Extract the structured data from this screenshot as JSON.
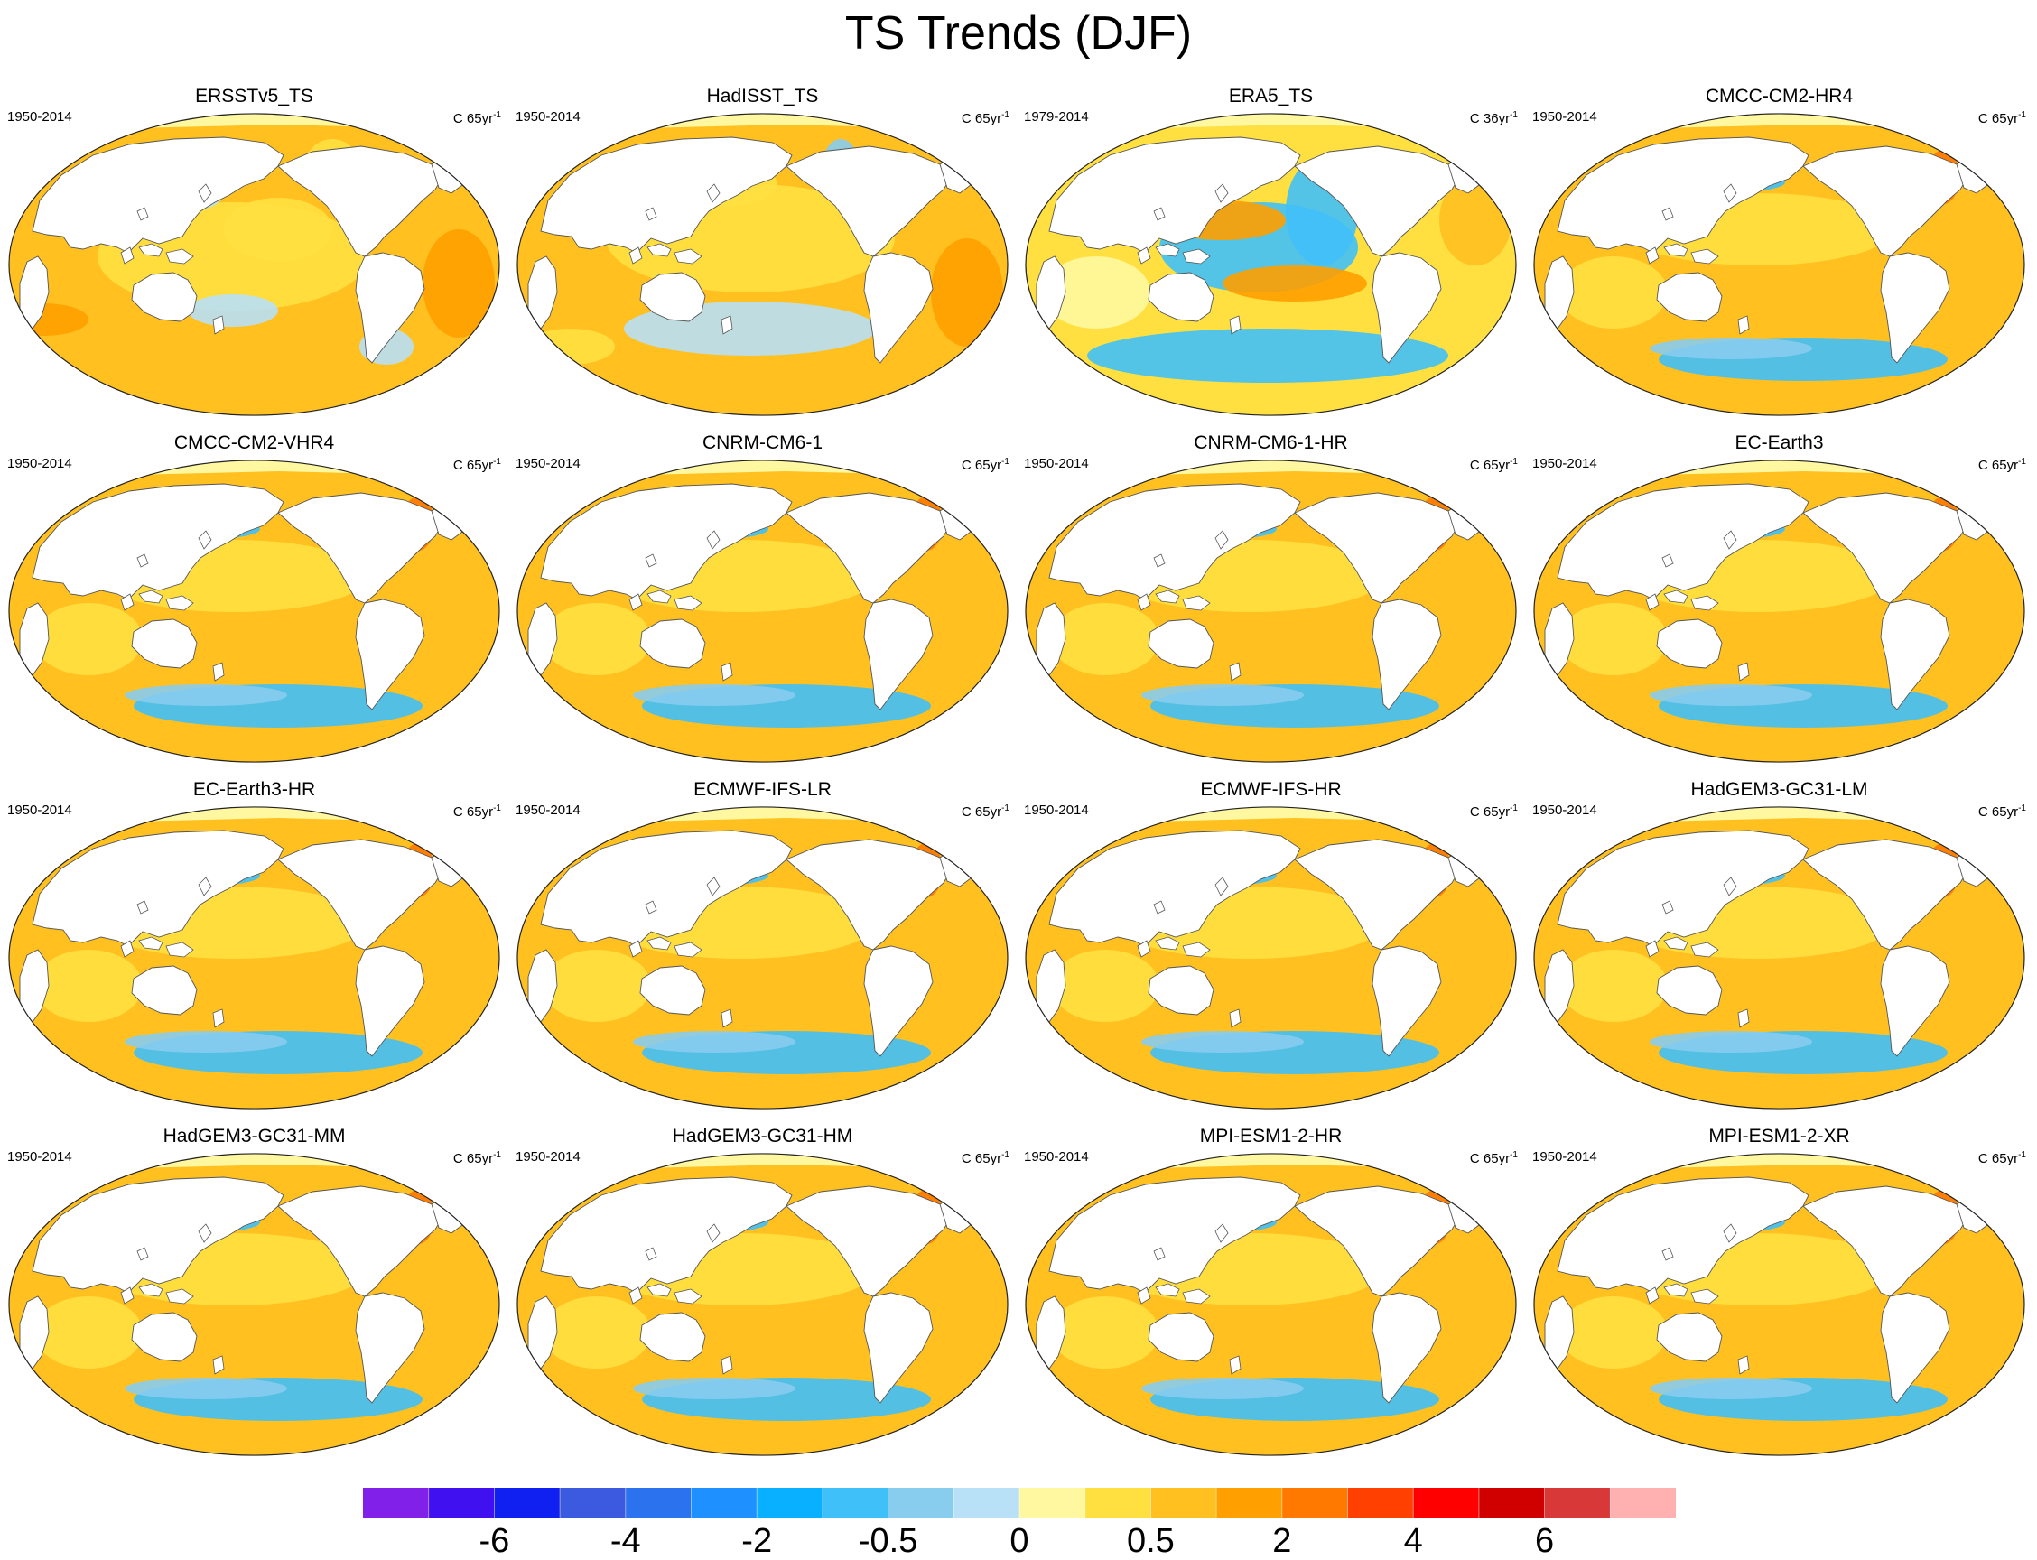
{
  "figure": {
    "title": "TS Trends (DJF)"
  },
  "chart_data": {
    "type": "heatmap",
    "title": "TS Trends (DJF)",
    "projection": "Robinson, Pacific-centered",
    "layout": {
      "rows": 4,
      "columns": 4
    },
    "panels": [
      {
        "title": "ERSSTv5_TS",
        "period": "1950-2014",
        "units": "C 65yr",
        "units_exp": "-1",
        "pattern": "ersst"
      },
      {
        "title": "HadISST_TS",
        "period": "1950-2014",
        "units": "C 65yr",
        "units_exp": "-1",
        "pattern": "hadisst"
      },
      {
        "title": "ERA5_TS",
        "period": "1979-2014",
        "units": "C 36yr",
        "units_exp": "-1",
        "pattern": "era5"
      },
      {
        "title": "CMCC-CM2-HR4",
        "period": "1950-2014",
        "units": "C 65yr",
        "units_exp": "-1",
        "pattern": "model"
      },
      {
        "title": "CMCC-CM2-VHR4",
        "period": "1950-2014",
        "units": "C 65yr",
        "units_exp": "-1",
        "pattern": "model"
      },
      {
        "title": "CNRM-CM6-1",
        "period": "1950-2014",
        "units": "C 65yr",
        "units_exp": "-1",
        "pattern": "model"
      },
      {
        "title": "CNRM-CM6-1-HR",
        "period": "1950-2014",
        "units": "C 65yr",
        "units_exp": "-1",
        "pattern": "model"
      },
      {
        "title": "EC-Earth3",
        "period": "1950-2014",
        "units": "C 65yr",
        "units_exp": "-1",
        "pattern": "model"
      },
      {
        "title": "EC-Earth3-HR",
        "period": "1950-2014",
        "units": "C 65yr",
        "units_exp": "-1",
        "pattern": "model"
      },
      {
        "title": "ECMWF-IFS-LR",
        "period": "1950-2014",
        "units": "C 65yr",
        "units_exp": "-1",
        "pattern": "model"
      },
      {
        "title": "ECMWF-IFS-HR",
        "period": "1950-2014",
        "units": "C 65yr",
        "units_exp": "-1",
        "pattern": "model"
      },
      {
        "title": "HadGEM3-GC31-LM",
        "period": "1950-2014",
        "units": "C 65yr",
        "units_exp": "-1",
        "pattern": "model"
      },
      {
        "title": "HadGEM3-GC31-MM",
        "period": "1950-2014",
        "units": "C 65yr",
        "units_exp": "-1",
        "pattern": "model"
      },
      {
        "title": "HadGEM3-GC31-HM",
        "period": "1950-2014",
        "units": "C 65yr",
        "units_exp": "-1",
        "pattern": "model"
      },
      {
        "title": "MPI-ESM1-2-HR",
        "period": "1950-2014",
        "units": "C 65yr",
        "units_exp": "-1",
        "pattern": "model"
      },
      {
        "title": "MPI-ESM1-2-XR",
        "period": "1950-2014",
        "units": "C 65yr",
        "units_exp": "-1",
        "pattern": "model"
      }
    ],
    "colorbar": {
      "colors": [
        "#8020e8",
        "#4010f0",
        "#1020f0",
        "#3c5ae0",
        "#2a72ee",
        "#1e90ff",
        "#08b0ff",
        "#40c0f8",
        "#88ccee",
        "#b8e0f6",
        "#fff8a0",
        "#ffe040",
        "#ffc020",
        "#ffa000",
        "#ff7800",
        "#ff4000",
        "#ff0000",
        "#d00000",
        "#d83838",
        "#ffb0b0"
      ],
      "tick_labels": [
        "-6",
        "-4",
        "-2",
        "-0.5",
        "0",
        "0.5",
        "2",
        "4",
        "6"
      ],
      "tick_boundaries": [
        2,
        4,
        6,
        8,
        10,
        12,
        14,
        16,
        18
      ]
    }
  }
}
